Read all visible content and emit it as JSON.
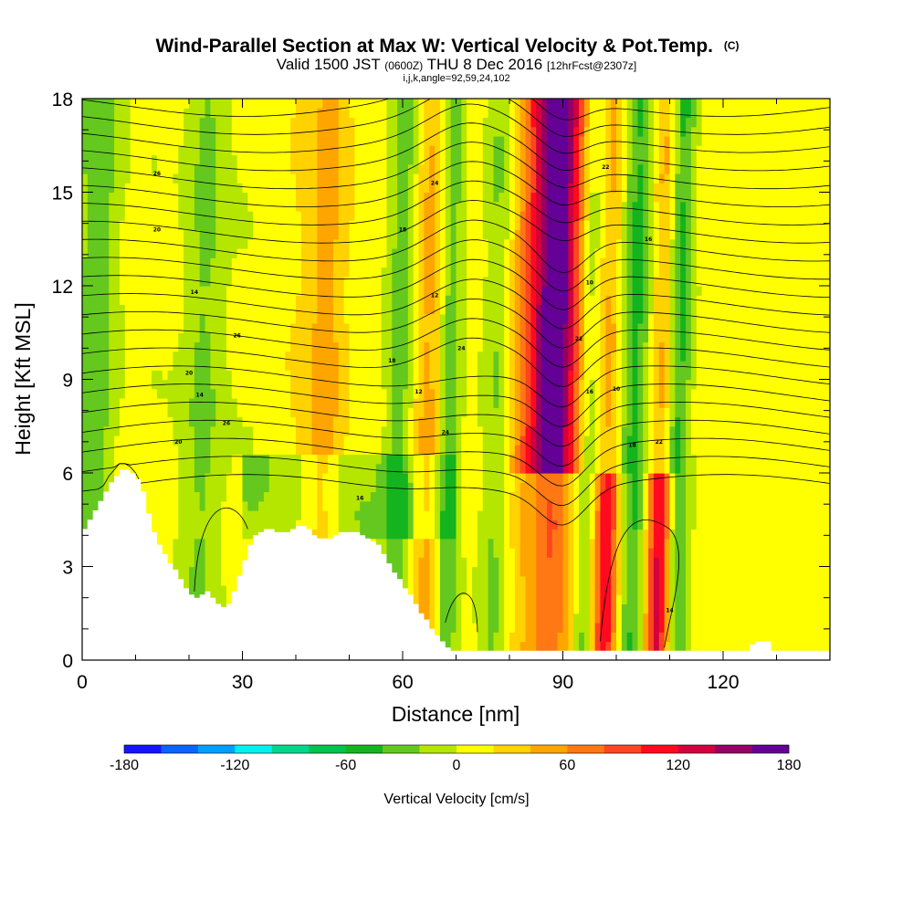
{
  "chart_data": {
    "type": "heatmap",
    "title": "Wind-Parallel Section at Max W: Vertical Velocity & Pot.Temp.",
    "title_suffix": "(C)",
    "subtitle_parts": [
      "Valid 1500 JST ",
      "(0600Z)",
      " THU 8 Dec 2016 ",
      "[12hrFcst@2307z]"
    ],
    "subtitle2": "i,j,k,angle=92,59,24,102",
    "xlabel": "Distance [nm]",
    "ylabel": "Height [Kft MSL]",
    "xlim": [
      0,
      140
    ],
    "ylim": [
      0,
      18
    ],
    "x_ticks": [
      0,
      30,
      60,
      90,
      120
    ],
    "y_ticks": [
      0,
      3,
      6,
      9,
      12,
      15,
      18
    ],
    "grid": false,
    "colorbar": {
      "label": "Vertical Velocity [cm/s]",
      "range": [
        -180,
        180
      ],
      "tick_labels": [
        "-180",
        "-120",
        "-60",
        "0",
        "60",
        "120",
        "180"
      ],
      "tick_values": [
        -180,
        -120,
        -60,
        0,
        60,
        120,
        180
      ],
      "colors": [
        "#1414ff",
        "#0a64ff",
        "#00a0ff",
        "#00f0f0",
        "#00d78c",
        "#00c350",
        "#14b41e",
        "#64c81e",
        "#b4e600",
        "#ffff00",
        "#ffd200",
        "#ffa500",
        "#ff7814",
        "#ff461e",
        "#ff0a1e",
        "#d2003c",
        "#960064",
        "#640096"
      ]
    },
    "terrain": {
      "x": [
        0,
        1,
        2,
        3,
        4,
        5,
        6,
        7,
        8,
        9,
        10,
        11,
        12,
        13,
        14,
        15,
        16,
        17,
        18,
        19,
        20,
        21,
        22,
        23,
        24,
        25,
        26,
        27,
        28,
        29,
        30,
        31,
        32,
        33,
        34,
        35,
        36,
        37,
        38,
        39,
        40,
        41,
        42,
        43,
        44,
        45,
        46,
        47,
        48,
        49,
        50,
        51,
        52,
        53,
        54,
        55,
        56,
        57,
        58,
        59,
        60,
        61,
        62,
        63,
        64,
        65,
        66,
        67,
        68,
        69,
        70,
        71,
        72,
        73,
        74,
        75,
        76,
        77,
        78,
        79,
        80,
        81,
        82,
        83,
        84,
        85,
        86,
        87,
        88,
        89,
        90,
        91,
        92,
        93,
        94,
        95,
        96,
        97,
        98,
        99,
        100,
        101,
        102,
        103,
        104,
        105,
        106,
        107,
        108,
        109,
        110,
        111,
        112,
        113,
        114,
        115,
        116,
        117,
        118,
        119,
        120,
        121,
        122,
        123,
        124,
        125,
        126,
        127,
        128,
        129,
        130,
        131,
        132,
        133,
        134,
        135,
        136,
        137,
        138,
        139,
        140
      ],
      "height": [
        4.2,
        4.5,
        4.8,
        5.1,
        5.4,
        5.7,
        5.9,
        6.1,
        6.1,
        6.0,
        5.8,
        5.4,
        4.7,
        4.1,
        3.7,
        3.4,
        3.1,
        2.9,
        2.6,
        2.3,
        2.1,
        2.0,
        2.1,
        2.2,
        2.0,
        1.8,
        1.7,
        1.8,
        2.2,
        2.7,
        3.2,
        3.7,
        4.0,
        4.1,
        4.2,
        4.2,
        4.1,
        4.1,
        4.1,
        4.2,
        4.3,
        4.3,
        4.2,
        4.0,
        3.9,
        3.9,
        3.9,
        4.0,
        4.1,
        4.1,
        4.1,
        4.1,
        4.0,
        3.9,
        3.8,
        3.7,
        3.4,
        3.1,
        2.8,
        2.6,
        2.3,
        2.1,
        1.8,
        1.5,
        1.3,
        1.0,
        0.8,
        0.6,
        0.4,
        0.3,
        0.3,
        0.3,
        0.3,
        0.3,
        0.3,
        0.3,
        0.3,
        0.3,
        0.3,
        0.3,
        0.3,
        0.3,
        0.3,
        0.3,
        0.3,
        0.3,
        0.3,
        0.3,
        0.3,
        0.3,
        0.3,
        0.3,
        0.3,
        0.3,
        0.3,
        0.3,
        0.3,
        0.3,
        0.3,
        0.3,
        0.3,
        0.3,
        0.3,
        0.3,
        0.3,
        0.3,
        0.3,
        0.3,
        0.3,
        0.3,
        0.3,
        0.3,
        0.3,
        0.3,
        0.3,
        0.3,
        0.3,
        0.3,
        0.3,
        0.3,
        0.3,
        0.3,
        0.3,
        0.3,
        0.3,
        0.5,
        0.6,
        0.6,
        0.6,
        0.3,
        0.3,
        0.3,
        0.3,
        0.3,
        0.3,
        0.3,
        0.3,
        0.3,
        0.3,
        0.3,
        0.3
      ]
    },
    "updraft_columns": [
      {
        "x": 85,
        "width": 5,
        "w": 110
      },
      {
        "x": 88,
        "width": 3,
        "w": 90
      },
      {
        "x": 98,
        "width": 2.5,
        "w": 110
      },
      {
        "x": 108,
        "width": 2.5,
        "w": 130
      },
      {
        "x": 65,
        "width": 4,
        "w": 50
      },
      {
        "x": 45,
        "width": 4,
        "w": 40
      },
      {
        "x": 92,
        "width": 3,
        "w": 60
      }
    ],
    "downdraft_columns": [
      {
        "x": 59,
        "width": 3,
        "w": -50
      },
      {
        "x": 68,
        "width": 2.5,
        "w": -60
      },
      {
        "x": 77,
        "width": 3,
        "w": -40
      },
      {
        "x": 94,
        "width": 2.5,
        "w": -60
      },
      {
        "x": 103,
        "width": 3,
        "w": -50
      },
      {
        "x": 111,
        "width": 2.5,
        "w": -70
      },
      {
        "x": 22,
        "width": 4,
        "w": -40
      },
      {
        "x": 2,
        "width": 4,
        "w": -50
      }
    ],
    "isentrope_labels": [
      "26",
      "24",
      "22",
      "20",
      "18",
      "16",
      "14",
      "12",
      "10"
    ]
  }
}
